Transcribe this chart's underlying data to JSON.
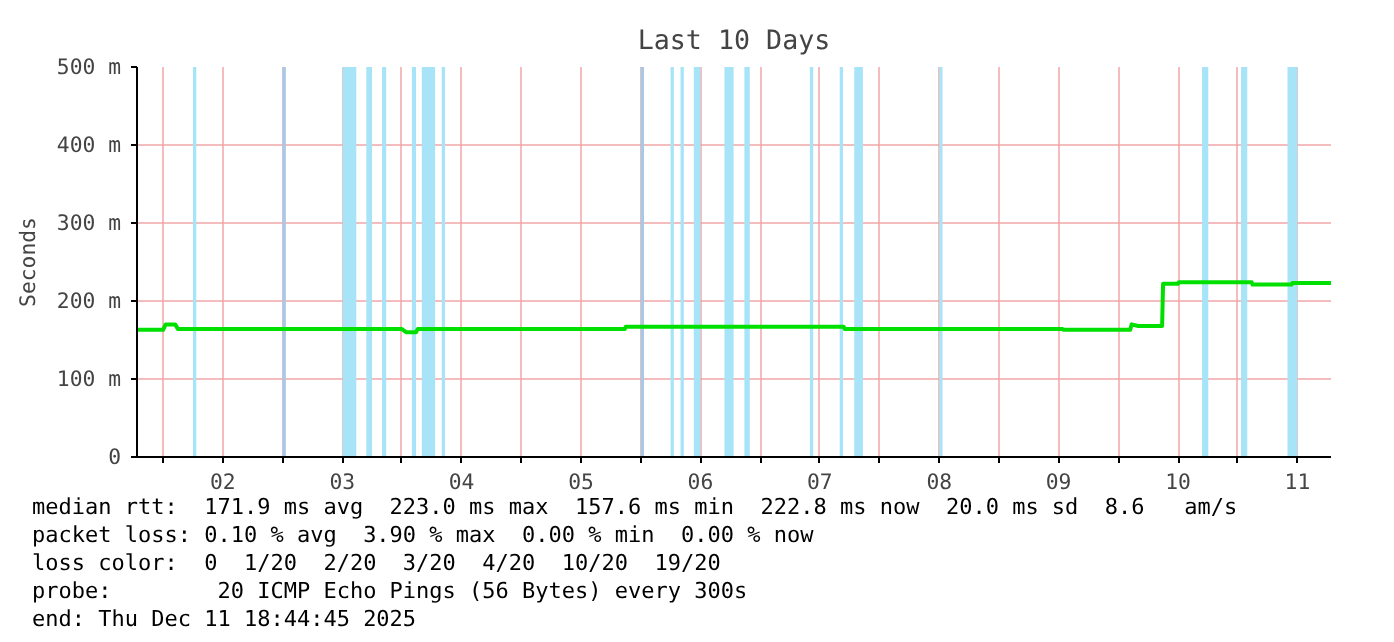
{
  "chart_data": {
    "type": "line",
    "title": "Last 10 Days",
    "ylabel": "Seconds",
    "xlim": [
      "2025-12-01T18:45",
      "2025-12-11T18:45"
    ],
    "xticks": [
      {
        "value": "2025-12-02T00:00",
        "label": null
      },
      {
        "value": "2025-12-02T12:00",
        "label": "02"
      },
      {
        "value": "2025-12-03T00:00",
        "label": null
      },
      {
        "value": "2025-12-03T12:00",
        "label": "03"
      },
      {
        "value": "2025-12-04T00:00",
        "label": null
      },
      {
        "value": "2025-12-04T12:00",
        "label": "04"
      },
      {
        "value": "2025-12-05T00:00",
        "label": null
      },
      {
        "value": "2025-12-05T12:00",
        "label": "05"
      },
      {
        "value": "2025-12-06T00:00",
        "label": null
      },
      {
        "value": "2025-12-06T12:00",
        "label": "06"
      },
      {
        "value": "2025-12-07T00:00",
        "label": null
      },
      {
        "value": "2025-12-07T12:00",
        "label": "07"
      },
      {
        "value": "2025-12-08T00:00",
        "label": null
      },
      {
        "value": "2025-12-08T12:00",
        "label": "08"
      },
      {
        "value": "2025-12-09T00:00",
        "label": null
      },
      {
        "value": "2025-12-09T12:00",
        "label": "09"
      },
      {
        "value": "2025-12-10T00:00",
        "label": null
      },
      {
        "value": "2025-12-10T12:00",
        "label": "10"
      },
      {
        "value": "2025-12-11T00:00",
        "label": null
      },
      {
        "value": "2025-12-11T12:00",
        "label": "11"
      }
    ],
    "ylim": [
      0,
      500
    ],
    "yticks": [
      0,
      {
        "value": 100,
        "label": "100 m"
      },
      {
        "value": 200,
        "label": "200 m"
      },
      {
        "value": 300,
        "label": "300 m"
      },
      {
        "value": 400,
        "label": "400 m"
      },
      {
        "value": 500,
        "label": "500 m"
      }
    ],
    "grid": true,
    "line_style": "solid",
    "series": [
      {
        "color": "#00e000",
        "x": [
          "2025-12-01T18:45",
          "2025-12-02T00:00",
          "2025-12-02T00:30",
          "2025-12-02T02:25",
          "2025-12-02T03:00",
          "2025-12-04T00:00",
          "2025-12-04T00:50",
          "2025-12-04T02:50",
          "2025-12-04T03:10",
          "2025-12-05T20:48",
          "2025-12-05T21:00",
          "2025-12-07T16:48",
          "2025-12-07T17:00",
          "2025-12-09T12:48",
          "2025-12-09T13:00",
          "2025-12-10T02:24",
          "2025-12-10T02:40",
          "2025-12-10T04:00",
          "2025-12-10T08:48",
          "2025-12-10T09:00",
          "2025-12-10T12:00",
          "2025-12-10T12:10",
          "2025-12-11T02:48",
          "2025-12-11T03:00",
          "2025-12-11T10:48",
          "2025-12-11T11:00",
          "2025-12-11T18:45"
        ],
        "values": [
          163,
          163,
          170,
          170,
          164,
          164,
          160,
          160,
          164,
          164,
          167,
          167,
          164,
          164,
          163,
          163,
          170,
          168,
          168,
          222,
          222,
          224,
          224,
          221,
          221,
          223,
          223
        ]
      }
    ],
    "bands": [
      {
        "axis": "x",
        "from": "2025-12-02T06:00",
        "to": "2025-12-02T06:40",
        "color": "#a8e4f8"
      },
      {
        "axis": "x",
        "from": "2025-12-03T00:00",
        "to": "2025-12-03T00:40",
        "color": "#a8c8e8"
      },
      {
        "axis": "x",
        "from": "2025-12-03T12:05",
        "to": "2025-12-03T14:50",
        "color": "#a8e4f8"
      },
      {
        "axis": "x",
        "from": "2025-12-03T16:50",
        "to": "2025-12-03T18:00",
        "color": "#a8e4f8"
      },
      {
        "axis": "x",
        "from": "2025-12-03T20:00",
        "to": "2025-12-03T20:50",
        "color": "#a8e4f8"
      },
      {
        "axis": "x",
        "from": "2025-12-04T02:00",
        "to": "2025-12-04T02:50",
        "color": "#a8e4f8"
      },
      {
        "axis": "x",
        "from": "2025-12-04T04:00",
        "to": "2025-12-04T06:40",
        "color": "#a8e4f8"
      },
      {
        "axis": "x",
        "from": "2025-12-04T08:00",
        "to": "2025-12-04T08:40",
        "color": "#a8e4f8"
      },
      {
        "axis": "x",
        "from": "2025-12-06T00:00",
        "to": "2025-12-06T00:40",
        "color": "#a8c8e8"
      },
      {
        "axis": "x",
        "from": "2025-12-06T06:00",
        "to": "2025-12-06T06:40",
        "color": "#a8e4f8"
      },
      {
        "axis": "x",
        "from": "2025-12-06T08:00",
        "to": "2025-12-06T08:40",
        "color": "#a8e4f8"
      },
      {
        "axis": "x",
        "from": "2025-12-06T10:40",
        "to": "2025-12-06T12:00",
        "color": "#a8e4f8"
      },
      {
        "axis": "x",
        "from": "2025-12-06T16:50",
        "to": "2025-12-06T18:40",
        "color": "#a8e4f8"
      },
      {
        "axis": "x",
        "from": "2025-12-06T20:50",
        "to": "2025-12-06T21:55",
        "color": "#a8e4f8"
      },
      {
        "axis": "x",
        "from": "2025-12-07T10:00",
        "to": "2025-12-07T10:40",
        "color": "#a8e4f8"
      },
      {
        "axis": "x",
        "from": "2025-12-07T16:00",
        "to": "2025-12-07T16:40",
        "color": "#a8e4f8"
      },
      {
        "axis": "x",
        "from": "2025-12-07T18:55",
        "to": "2025-12-07T20:40",
        "color": "#a8e4f8"
      },
      {
        "axis": "x",
        "from": "2025-12-08T12:00",
        "to": "2025-12-08T12:40",
        "color": "#a8e4f8"
      },
      {
        "axis": "x",
        "from": "2025-12-10T16:50",
        "to": "2025-12-10T18:05",
        "color": "#a8e4f8"
      },
      {
        "axis": "x",
        "from": "2025-12-11T00:40",
        "to": "2025-12-11T01:55",
        "color": "#a8e4f8"
      },
      {
        "axis": "x",
        "from": "2025-12-11T10:00",
        "to": "2025-12-11T12:00",
        "color": "#a8e4f8"
      }
    ],
    "annotations": [
      "median rtt:  171.9 ms avg  223.0 ms max  157.6 ms min  222.8 ms now  20.0 ms sd  8.6   am/s",
      "packet loss: 0.10 % avg  3.90 % max  0.00 % min  0.00 % now",
      "loss color:  0  1/20  2/20  3/20  4/20  10/20  19/20",
      "probe:        20 ICMP Echo Pings (56 Bytes) every 300s",
      "end: Thu Dec 11 18:44:45 2025"
    ]
  }
}
